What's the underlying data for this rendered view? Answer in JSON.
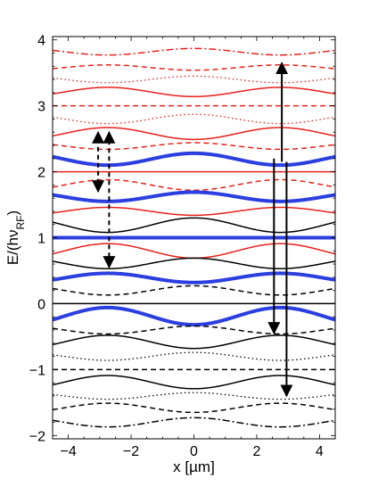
{
  "chart_data": {
    "type": "line",
    "xlabel": "x [µm]",
    "ylabel_main": "E/(hν",
    "ylabel_sub": "RF",
    "ylabel_close": ")",
    "xlim": [
      -4.5,
      4.5
    ],
    "ylim": [
      -2.05,
      4.05
    ],
    "xticks": [
      -4,
      -2,
      0,
      2,
      4
    ],
    "xtick_labels": [
      "−4",
      "−2",
      "0",
      "2",
      "4"
    ],
    "yticks": [
      -2,
      -1,
      0,
      1,
      2,
      3,
      4
    ],
    "ytick_labels": [
      "−2",
      "−1",
      "0",
      "1",
      "2",
      "3",
      "4"
    ],
    "grid": false,
    "colors": {
      "black": "#000000",
      "red": "#e8201a",
      "blue": "#2b3fe0"
    },
    "series": [
      {
        "offset": 3.82,
        "amplitude": 0.05,
        "color": "red",
        "style": "dashdot",
        "width": 1.5
      },
      {
        "offset": 3.58,
        "amplitude": -0.04,
        "color": "red",
        "style": "dashed",
        "width": 1.5
      },
      {
        "offset": 3.4,
        "amplitude": 0.05,
        "color": "red",
        "style": "dotted",
        "width": 1.3
      },
      {
        "offset": 3.21,
        "amplitude": -0.07,
        "color": "red",
        "style": "solid",
        "width": 1.5
      },
      {
        "offset": 3.0,
        "amplitude": 0.0,
        "color": "red",
        "style": "dashed",
        "width": 1.5
      },
      {
        "offset": 2.8,
        "amplitude": 0.07,
        "color": "red",
        "style": "dotted",
        "width": 1.3
      },
      {
        "offset": 2.58,
        "amplitude": -0.09,
        "color": "red",
        "style": "solid",
        "width": 1.5
      },
      {
        "offset": 2.39,
        "amplitude": 0.05,
        "color": "red",
        "style": "dashed",
        "width": 1.5
      },
      {
        "offset": 2.19,
        "amplitude": 0.09,
        "color": "blue",
        "style": "solid",
        "width": 4
      },
      {
        "offset": 2.0,
        "amplitude": 0.0,
        "color": "red",
        "style": "solid",
        "width": 1.5
      },
      {
        "offset": 1.8,
        "amplitude": -0.08,
        "color": "red",
        "style": "dashed",
        "width": 1.5
      },
      {
        "offset": 1.62,
        "amplitude": 0.07,
        "color": "blue",
        "style": "solid",
        "width": 4
      },
      {
        "offset": 1.4,
        "amplitude": -0.06,
        "color": "red",
        "style": "solid",
        "width": 1.5
      },
      {
        "offset": 1.19,
        "amplitude": 0.11,
        "color": "black",
        "style": "solid",
        "width": 1.5
      },
      {
        "offset": 1.0,
        "amplitude": 0.0,
        "color": "blue",
        "style": "solid",
        "width": 4
      },
      {
        "offset": 0.8,
        "amplitude": -0.11,
        "color": "red",
        "style": "solid",
        "width": 1.5
      },
      {
        "offset": 0.61,
        "amplitude": 0.08,
        "color": "black",
        "style": "solid",
        "width": 1.5
      },
      {
        "offset": 0.39,
        "amplitude": -0.07,
        "color": "blue",
        "style": "solid",
        "width": 4
      },
      {
        "offset": 0.2,
        "amplitude": 0.07,
        "color": "black",
        "style": "dashed",
        "width": 1.5
      },
      {
        "offset": 0.0,
        "amplitude": 0.0,
        "color": "black",
        "style": "solid",
        "width": 1.5
      },
      {
        "offset": -0.19,
        "amplitude": -0.13,
        "color": "blue",
        "style": "solid",
        "width": 4
      },
      {
        "offset": -0.4,
        "amplitude": 0.06,
        "color": "black",
        "style": "dashed",
        "width": 1.5
      },
      {
        "offset": -0.58,
        "amplitude": -0.1,
        "color": "black",
        "style": "solid",
        "width": 1.5
      },
      {
        "offset": -0.8,
        "amplitude": 0.06,
        "color": "black",
        "style": "dotted",
        "width": 1.3
      },
      {
        "offset": -1.0,
        "amplitude": 0.0,
        "color": "black",
        "style": "dashed",
        "width": 1.5
      },
      {
        "offset": -1.19,
        "amplitude": -0.1,
        "color": "black",
        "style": "solid",
        "width": 1.5
      },
      {
        "offset": -1.4,
        "amplitude": 0.05,
        "color": "black",
        "style": "dotted",
        "width": 1.3
      },
      {
        "offset": -1.58,
        "amplitude": -0.07,
        "color": "black",
        "style": "dashed",
        "width": 1.5
      },
      {
        "offset": -1.8,
        "amplitude": 0.07,
        "color": "black",
        "style": "dashdot",
        "width": 1.5
      }
    ],
    "transitions": [
      {
        "x": -3.05,
        "y_from": 1.7,
        "y_to": 2.6,
        "style": "dashed",
        "heads": "both"
      },
      {
        "x": -2.7,
        "y_from": 2.6,
        "y_to": 0.55,
        "style": "dashed",
        "heads": "both"
      },
      {
        "x": 2.55,
        "y_from": 2.2,
        "y_to": -0.45,
        "style": "solid",
        "heads": "end"
      },
      {
        "x": 2.8,
        "y_from": 2.15,
        "y_to": 3.65,
        "style": "solid",
        "heads": "end"
      },
      {
        "x": 2.95,
        "y_from": 2.15,
        "y_to": -1.4,
        "style": "solid",
        "heads": "end"
      }
    ]
  }
}
